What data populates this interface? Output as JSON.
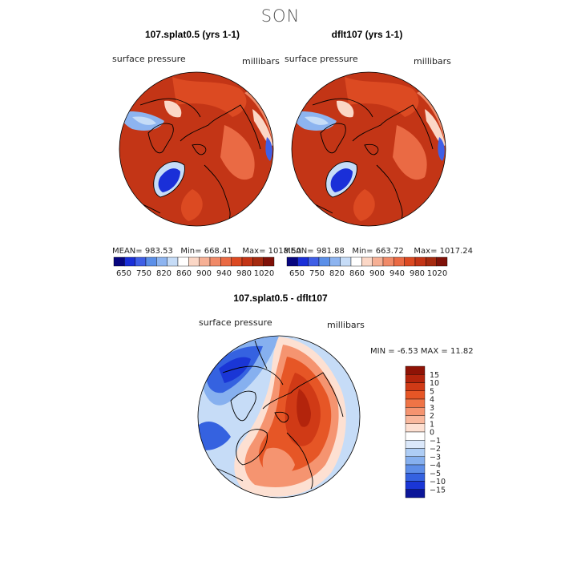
{
  "season": "SON",
  "colors": {
    "dark_red": "#a52a0f",
    "mid_red": "#d8431a",
    "orange": "#ef6b3a",
    "light_blue": "#c6dcf7",
    "mid_blue": "#5b8fe8",
    "deep_blue": "#1a2fd8",
    "land_line": "#000000"
  },
  "panels": [
    {
      "title": "107.splat0.5 (yrs 1-1)",
      "field_label": "surface pressure",
      "units": "millibars",
      "stats": {
        "mean": "983.53",
        "min": "668.41",
        "max": "1018.50"
      }
    },
    {
      "title": "dflt107 (yrs 1-1)",
      "field_label": "surface pressure",
      "units": "millibars",
      "stats": {
        "mean": "981.88",
        "min": "663.72",
        "max": "1017.24"
      }
    }
  ],
  "colorbar_top": {
    "labels": [
      "650",
      "750",
      "820",
      "860",
      "900",
      "940",
      "980",
      "1020"
    ],
    "colors": [
      "#07067f",
      "#1a2fd8",
      "#3f5fe6",
      "#5b8fe8",
      "#8db4f0",
      "#c6dcf7",
      "#ffffff",
      "#fbd7c6",
      "#f6b095",
      "#f08a68",
      "#ea6a44",
      "#dc4a22",
      "#c33516",
      "#a52a0f",
      "#7f1108"
    ]
  },
  "diff_panel": {
    "title": "107.splat0.5 - dflt107",
    "field_label": "surface pressure",
    "units": "millibars",
    "min_label": "MIN =",
    "min_value": "-6.53",
    "max_label": "MAX =",
    "max_value": "11.82"
  },
  "colorbar_diff": {
    "labels": [
      "15",
      "10",
      "5",
      "4",
      "3",
      "2",
      "1",
      "0",
      "−1",
      "−2",
      "−3",
      "−4",
      "−5",
      "−10",
      "−15"
    ],
    "colors": [
      "#8f1306",
      "#b3240c",
      "#d03a16",
      "#e65626",
      "#ef7446",
      "#f59470",
      "#f9b89d",
      "#fde0d2",
      "#ffffff",
      "#dbe8fa",
      "#aecdf5",
      "#86b0ef",
      "#5e8ee8",
      "#3562e0",
      "#1a36d6",
      "#0c1699"
    ]
  }
}
